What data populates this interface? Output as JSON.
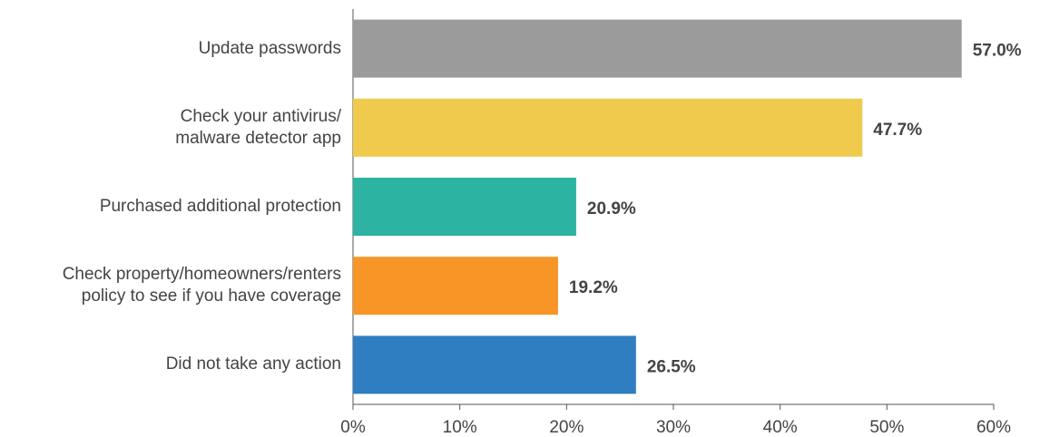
{
  "chart_data": {
    "type": "bar",
    "orientation": "horizontal",
    "categories": [
      "Update passwords",
      "Check your antivirus/\nmalware detector app",
      "Purchased additional protection",
      "Check property/homeowners/renters\npolicy to see if you have coverage",
      "Did not take any action"
    ],
    "values": [
      57.0,
      47.7,
      20.9,
      19.2,
      26.5
    ],
    "value_labels": [
      "57.0%",
      "47.7%",
      "20.9%",
      "19.2%",
      "26.5%"
    ],
    "colors": [
      "#9b9b9b",
      "#efca4d",
      "#2db3a1",
      "#f79627",
      "#2f7ec1"
    ],
    "xlim": [
      0,
      60
    ],
    "xticks": [
      {
        "value": 0,
        "label": "0%"
      },
      {
        "value": 10,
        "label": "10%"
      },
      {
        "value": 20,
        "label": "20%"
      },
      {
        "value": 30,
        "label": "30%"
      },
      {
        "value": 40,
        "label": "40%"
      },
      {
        "value": 50,
        "label": "50%"
      },
      {
        "value": 60,
        "label": "60%"
      }
    ],
    "grid": false
  }
}
